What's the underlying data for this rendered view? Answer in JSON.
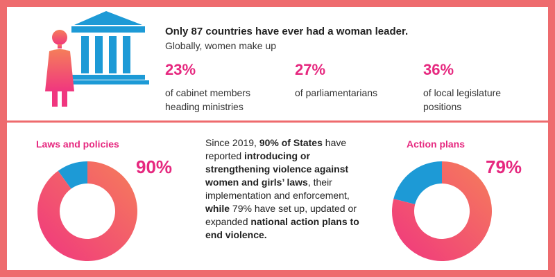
{
  "header": {
    "headline": "Only 87 countries have ever had a woman leader.",
    "subline": "Globally, women make up"
  },
  "stats": [
    {
      "value": "23%",
      "label_line1": "of cabinet members",
      "label_line2": "heading ministries"
    },
    {
      "value": "27%",
      "label_line1": "of parliamentarians",
      "label_line2": ""
    },
    {
      "value": "36%",
      "label_line1": "of local legislature",
      "label_line2": "positions"
    }
  ],
  "middle_text": {
    "p1": "Since 2019, ",
    "p2": "90% of States",
    "p3": " have reported ",
    "p4": "introducing or strengthening violence against women and girls’ laws",
    "p5": ", their implementation and enforcement, ",
    "p6": "while",
    "p7": " 79% have set up, updated or expanded ",
    "p8": "national action plans to end violence."
  },
  "colors": {
    "frame": "#ee6b6e",
    "accent": "#e6287f",
    "donut_gradient_start": "#f0367f",
    "donut_gradient_end": "#f57e5a",
    "donut_remainder": "#1d9ad6",
    "building": "#1d9ad6"
  },
  "icons": {
    "illustration": "woman-and-government-building-icon"
  },
  "chart_data": [
    {
      "type": "pie",
      "title": "Laws and policies",
      "display_value": "90%",
      "values": [
        90,
        10
      ]
    },
    {
      "type": "pie",
      "title": "Action plans",
      "display_value": "79%",
      "values": [
        79,
        21
      ]
    }
  ]
}
